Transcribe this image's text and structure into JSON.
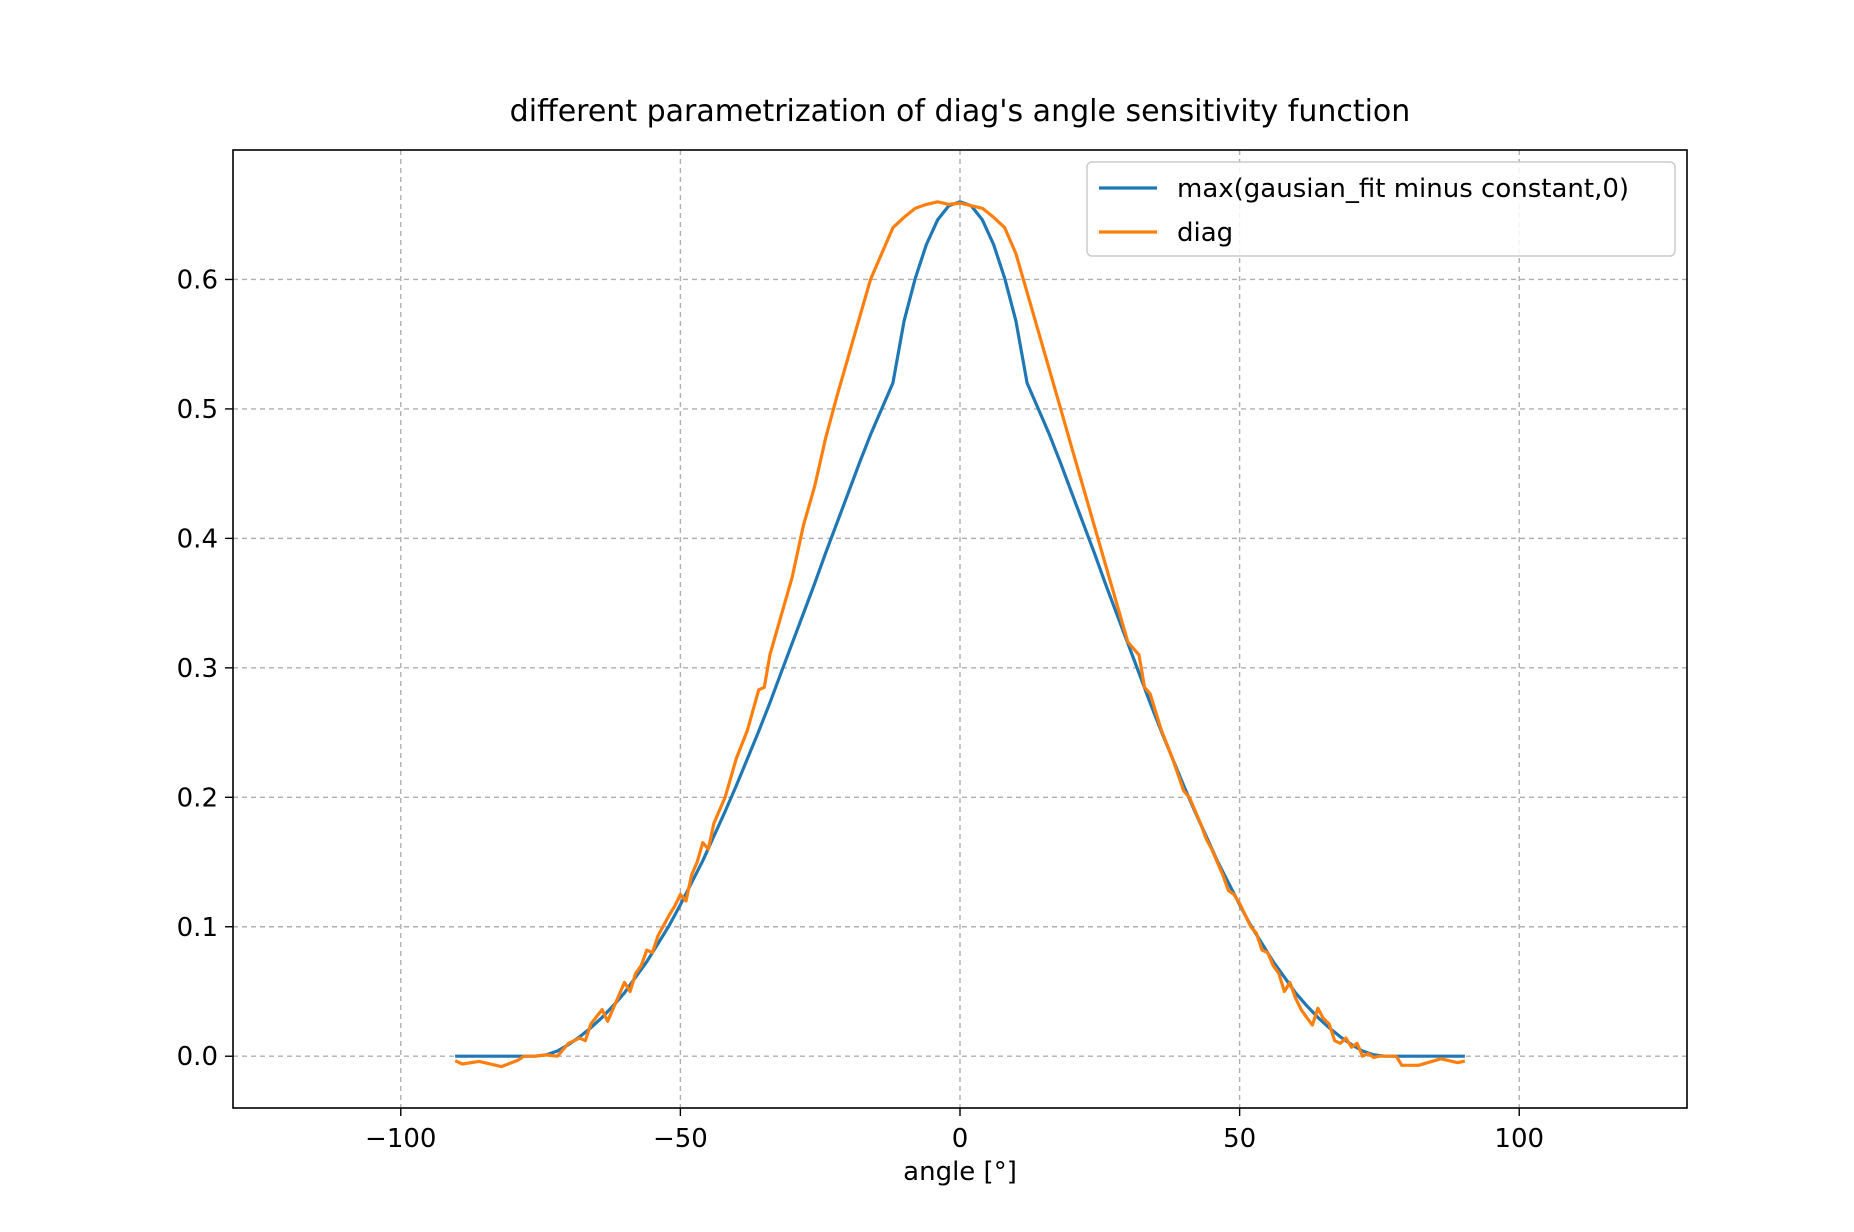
{
  "chart_data": {
    "type": "line",
    "title": "different parametrization of diag's angle sensitivity function",
    "xlabel": "angle [°]",
    "ylabel": "",
    "xlim": [
      -130,
      130
    ],
    "ylim": [
      -0.04,
      0.7
    ],
    "xticks": [
      -100,
      -50,
      0,
      50,
      100
    ],
    "xtick_labels": [
      "−100",
      "−50",
      "0",
      "50",
      "100"
    ],
    "yticks": [
      0.0,
      0.1,
      0.2,
      0.3,
      0.4,
      0.5,
      0.6
    ],
    "ytick_labels": [
      "0.0",
      "0.1",
      "0.2",
      "0.3",
      "0.4",
      "0.5",
      "0.6"
    ],
    "grid": true,
    "legend_position": "top-right",
    "series": [
      {
        "name": "max(gausian_fit minus constant,0)",
        "color": "#1f77b4",
        "x": [
          -90,
          -80,
          -76,
          -74,
          -72,
          -70,
          -68,
          -66,
          -64,
          -62,
          -60,
          -58,
          -56,
          -54,
          -52,
          -50,
          -48,
          -46,
          -44,
          -42,
          -40,
          -38,
          -36,
          -34,
          -32,
          -30,
          -28,
          -26,
          -24,
          -22,
          -20,
          -18,
          -16,
          -14,
          -12,
          -10,
          -8,
          -6,
          -4,
          -2,
          0,
          2,
          4,
          6,
          8,
          10,
          12,
          14,
          16,
          18,
          20,
          22,
          24,
          26,
          28,
          30,
          32,
          34,
          36,
          38,
          40,
          42,
          44,
          46,
          48,
          50,
          52,
          54,
          56,
          58,
          60,
          62,
          64,
          66,
          68,
          70,
          72,
          74,
          76,
          80,
          90
        ],
        "y": [
          0.0,
          0.0,
          0.0,
          0.001,
          0.004,
          0.009,
          0.015,
          0.022,
          0.03,
          0.039,
          0.049,
          0.061,
          0.073,
          0.087,
          0.101,
          0.117,
          0.134,
          0.151,
          0.17,
          0.189,
          0.209,
          0.23,
          0.251,
          0.273,
          0.296,
          0.319,
          0.342,
          0.365,
          0.389,
          0.412,
          0.435,
          0.458,
          0.48,
          0.5,
          0.52,
          0.568,
          0.601,
          0.627,
          0.646,
          0.657,
          0.66,
          0.657,
          0.646,
          0.627,
          0.601,
          0.568,
          0.52,
          0.5,
          0.48,
          0.458,
          0.435,
          0.412,
          0.389,
          0.365,
          0.342,
          0.319,
          0.296,
          0.273,
          0.251,
          0.23,
          0.209,
          0.189,
          0.17,
          0.151,
          0.134,
          0.117,
          0.101,
          0.087,
          0.073,
          0.061,
          0.049,
          0.039,
          0.03,
          0.022,
          0.015,
          0.009,
          0.004,
          0.001,
          0.0,
          0.0,
          0.0
        ]
      },
      {
        "name": "diag",
        "color": "#ff7f0e",
        "x": [
          -90,
          -89,
          -86,
          -82,
          -79,
          -78,
          -76,
          -74,
          -72,
          -70,
          -68,
          -67,
          -66,
          -64,
          -63,
          -62,
          -60,
          -59,
          -58,
          -57,
          -56,
          -55,
          -54,
          -52,
          -51,
          -50,
          -49,
          -48,
          -47,
          -46,
          -45,
          -44,
          -43,
          -42,
          -40,
          -38,
          -36,
          -35,
          -34,
          -32,
          -30,
          -28,
          -26,
          -24,
          -22,
          -20,
          -18,
          -16,
          -14,
          -12,
          -10,
          -8,
          -6,
          -4,
          -2,
          0,
          2,
          4,
          6,
          8,
          10,
          12,
          14,
          16,
          18,
          20,
          22,
          24,
          26,
          28,
          30,
          32,
          33,
          34,
          36,
          38,
          40,
          41,
          42,
          43,
          44,
          45,
          46,
          47,
          48,
          49,
          50,
          51,
          52,
          53,
          54,
          55,
          56,
          57,
          58,
          59,
          60,
          61,
          62,
          63,
          64,
          65,
          66,
          67,
          68,
          69,
          70,
          71,
          72,
          73,
          74,
          75,
          78,
          79,
          82,
          86,
          89,
          90
        ],
        "y": [
          -0.004,
          -0.006,
          -0.004,
          -0.008,
          -0.003,
          0.0,
          0.0,
          0.001,
          0.0,
          0.01,
          0.014,
          0.012,
          0.025,
          0.036,
          0.027,
          0.037,
          0.057,
          0.05,
          0.064,
          0.07,
          0.082,
          0.08,
          0.093,
          0.109,
          0.116,
          0.125,
          0.12,
          0.14,
          0.15,
          0.165,
          0.16,
          0.18,
          0.19,
          0.2,
          0.23,
          0.252,
          0.283,
          0.285,
          0.31,
          0.34,
          0.37,
          0.41,
          0.44,
          0.478,
          0.51,
          0.54,
          0.57,
          0.6,
          0.62,
          0.64,
          0.648,
          0.655,
          0.658,
          0.66,
          0.658,
          0.659,
          0.657,
          0.655,
          0.648,
          0.64,
          0.62,
          0.59,
          0.56,
          0.53,
          0.5,
          0.47,
          0.44,
          0.41,
          0.38,
          0.35,
          0.32,
          0.31,
          0.285,
          0.28,
          0.252,
          0.23,
          0.205,
          0.2,
          0.19,
          0.18,
          0.168,
          0.16,
          0.15,
          0.14,
          0.128,
          0.125,
          0.118,
          0.109,
          0.1,
          0.095,
          0.082,
          0.08,
          0.07,
          0.064,
          0.05,
          0.057,
          0.045,
          0.036,
          0.03,
          0.024,
          0.037,
          0.029,
          0.025,
          0.012,
          0.01,
          0.014,
          0.007,
          0.01,
          0.0,
          0.002,
          -0.001,
          0.0,
          0.0,
          -0.007,
          -0.007,
          -0.002,
          -0.005,
          -0.004
        ]
      }
    ]
  }
}
